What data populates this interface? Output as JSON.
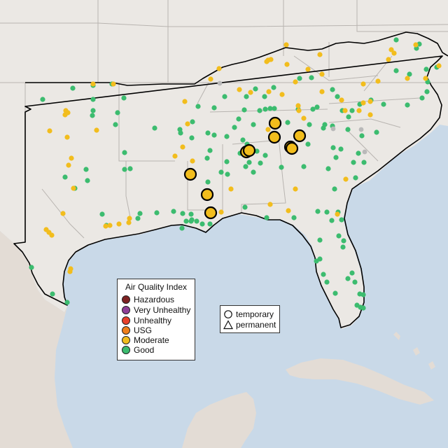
{
  "colors": {
    "water": "#c9d9e8",
    "land": "#ebe8e4",
    "foreign_land": "#e3dcd5",
    "state_border": "#b8b4b0",
    "region_border": "#000000",
    "hazardous": "#7e2223",
    "very_unhealthy": "#8f3f97",
    "unhealthy": "#e8402a",
    "usg": "#ef7f1a",
    "moderate": "#f2bd1d",
    "good": "#3cbc6f",
    "missing": "#b9b9b9"
  },
  "legend": {
    "title": "Air Quality Index",
    "items": [
      {
        "label": "Hazardous",
        "color_key": "hazardous"
      },
      {
        "label": "Very Unhealthy",
        "color_key": "very_unhealthy"
      },
      {
        "label": "Unhealthy",
        "color_key": "unhealthy"
      },
      {
        "label": "USG",
        "color_key": "usg"
      },
      {
        "label": "Moderate",
        "color_key": "moderate"
      },
      {
        "label": "Good",
        "color_key": "good"
      }
    ]
  },
  "monitor_type_legend": {
    "items": [
      {
        "label": "temporary",
        "symbol": "circle"
      },
      {
        "label": "permanent",
        "symbol": "triangle"
      }
    ]
  },
  "monitors": {
    "temporary_moderate": [
      [
        272,
        249
      ],
      [
        393,
        176
      ],
      [
        392,
        196
      ],
      [
        428,
        194
      ],
      [
        415,
        210
      ],
      [
        417,
        212
      ],
      [
        352,
        217
      ],
      [
        356,
        215
      ],
      [
        296,
        278
      ],
      [
        301,
        304
      ]
    ],
    "permanent_good": [
      [
        61,
        142
      ],
      [
        104,
        126
      ],
      [
        133,
        122
      ],
      [
        160,
        120
      ],
      [
        177,
        140
      ],
      [
        133,
        142
      ],
      [
        133,
        158
      ],
      [
        165,
        178
      ],
      [
        132,
        165
      ],
      [
        168,
        161
      ],
      [
        221,
        183
      ],
      [
        178,
        218
      ],
      [
        178,
        242
      ],
      [
        186,
        241
      ],
      [
        123,
        242
      ],
      [
        125,
        258
      ],
      [
        107,
        269
      ],
      [
        93,
        253
      ],
      [
        146,
        306
      ],
      [
        152,
        322
      ],
      [
        200,
        305
      ],
      [
        197,
        312
      ],
      [
        224,
        304
      ],
      [
        248,
        302
      ],
      [
        261,
        305
      ],
      [
        266,
        316
      ],
      [
        273,
        306
      ],
      [
        274,
        314
      ],
      [
        281,
        316
      ],
      [
        289,
        320
      ],
      [
        45,
        382
      ],
      [
        75,
        420
      ],
      [
        96,
        432
      ],
      [
        274,
        197
      ],
      [
        300,
        215
      ],
      [
        283,
        152
      ],
      [
        275,
        174
      ],
      [
        297,
        190
      ],
      [
        306,
        193
      ],
      [
        324,
        195
      ],
      [
        347,
        200
      ],
      [
        353,
        206
      ],
      [
        343,
        219
      ],
      [
        379,
        222
      ],
      [
        402,
        239
      ],
      [
        434,
        238
      ],
      [
        469,
        241
      ],
      [
        480,
        225
      ],
      [
        487,
        213
      ],
      [
        497,
        185
      ],
      [
        489,
        158
      ],
      [
        503,
        158
      ],
      [
        498,
        167
      ],
      [
        447,
        156
      ],
      [
        482,
        138
      ],
      [
        475,
        180
      ],
      [
        517,
        194
      ],
      [
        538,
        189
      ],
      [
        548,
        149
      ],
      [
        582,
        150
      ],
      [
        610,
        131
      ],
      [
        603,
        140
      ],
      [
        585,
        106
      ],
      [
        566,
        101
      ],
      [
        566,
        57
      ],
      [
        599,
        63
      ],
      [
        595,
        69
      ],
      [
        609,
        99
      ],
      [
        611,
        117
      ],
      [
        624,
        96
      ],
      [
        462,
        183
      ],
      [
        475,
        128
      ],
      [
        530,
        143
      ],
      [
        514,
        149
      ],
      [
        464,
        178
      ],
      [
        453,
        153
      ],
      [
        442,
        178
      ],
      [
        440,
        206
      ],
      [
        512,
        219
      ],
      [
        505,
        232
      ],
      [
        520,
        232
      ],
      [
        508,
        254
      ],
      [
        476,
        211
      ],
      [
        478,
        270
      ],
      [
        454,
        302
      ],
      [
        467,
        303
      ],
      [
        483,
        303
      ],
      [
        474,
        315
      ],
      [
        488,
        314
      ],
      [
        484,
        337
      ],
      [
        491,
        344
      ],
      [
        490,
        353
      ],
      [
        457,
        343
      ],
      [
        457,
        370
      ],
      [
        452,
        373
      ],
      [
        462,
        392
      ],
      [
        467,
        403
      ],
      [
        497,
        398
      ],
      [
        507,
        403
      ],
      [
        514,
        420
      ],
      [
        519,
        421
      ],
      [
        510,
        436
      ],
      [
        515,
        439
      ],
      [
        519,
        440
      ],
      [
        479,
        419
      ],
      [
        503,
        390
      ],
      [
        420,
        311
      ],
      [
        381,
        311
      ],
      [
        350,
        296
      ],
      [
        348,
        215
      ],
      [
        352,
        138
      ],
      [
        365,
        127
      ],
      [
        378,
        138
      ],
      [
        391,
        125
      ],
      [
        428,
        112
      ],
      [
        445,
        111
      ],
      [
        426,
        156
      ],
      [
        411,
        175
      ],
      [
        306,
        154
      ],
      [
        321,
        138
      ],
      [
        349,
        157
      ],
      [
        341,
        170
      ],
      [
        297,
        260
      ],
      [
        324,
        231
      ],
      [
        392,
        155
      ],
      [
        379,
        156
      ],
      [
        362,
        178
      ],
      [
        257,
        185
      ],
      [
        258,
        190
      ],
      [
        386,
        155
      ],
      [
        371,
        158
      ],
      [
        335,
        182
      ],
      [
        351,
        238
      ],
      [
        356,
        232
      ],
      [
        372,
        233
      ],
      [
        367,
        216
      ],
      [
        296,
        226
      ],
      [
        362,
        246
      ],
      [
        325,
        249
      ],
      [
        316,
        246
      ],
      [
        273,
        316
      ],
      [
        260,
        326
      ],
      [
        300,
        320
      ]
    ],
    "permanent_moderate": [
      [
        133,
        120
      ],
      [
        162,
        120
      ],
      [
        94,
        158
      ],
      [
        97,
        161
      ],
      [
        93,
        164
      ],
      [
        71,
        187
      ],
      [
        96,
        196
      ],
      [
        138,
        186
      ],
      [
        102,
        226
      ],
      [
        98,
        236
      ],
      [
        105,
        269
      ],
      [
        90,
        305
      ],
      [
        66,
        328
      ],
      [
        70,
        332
      ],
      [
        74,
        336
      ],
      [
        151,
        323
      ],
      [
        157,
        322
      ],
      [
        170,
        320
      ],
      [
        185,
        312
      ],
      [
        184,
        318
      ],
      [
        316,
        303
      ],
      [
        305,
        305
      ],
      [
        250,
        223
      ],
      [
        261,
        210
      ],
      [
        275,
        230
      ],
      [
        383,
        86
      ],
      [
        381,
        88
      ],
      [
        387,
        85
      ],
      [
        410,
        92
      ],
      [
        440,
        99
      ],
      [
        460,
        106
      ],
      [
        460,
        131
      ],
      [
        403,
        135
      ],
      [
        342,
        128
      ],
      [
        358,
        132
      ],
      [
        384,
        131
      ],
      [
        426,
        151
      ],
      [
        427,
        158
      ],
      [
        488,
        143
      ],
      [
        513,
        158
      ],
      [
        529,
        145
      ],
      [
        519,
        120
      ],
      [
        608,
        112
      ],
      [
        627,
        94
      ],
      [
        582,
        112
      ],
      [
        457,
        78
      ],
      [
        594,
        64
      ],
      [
        555,
        85
      ],
      [
        422,
        270
      ],
      [
        386,
        292
      ],
      [
        412,
        301
      ],
      [
        482,
        306
      ],
      [
        494,
        256
      ],
      [
        519,
        147
      ],
      [
        529,
        164
      ],
      [
        100,
        388
      ],
      [
        101,
        384
      ],
      [
        409,
        64
      ],
      [
        383,
        185
      ],
      [
        422,
        117
      ],
      [
        540,
        116
      ],
      [
        559,
        71
      ],
      [
        563,
        76
      ],
      [
        330,
        270
      ],
      [
        313,
        98
      ],
      [
        301,
        113
      ],
      [
        264,
        145
      ],
      [
        268,
        177
      ],
      [
        434,
        169
      ],
      [
        493,
        158
      ]
    ],
    "missing": [
      [
        314,
        119
      ],
      [
        516,
        185
      ],
      [
        476,
        184
      ],
      [
        521,
        217
      ]
    ]
  }
}
